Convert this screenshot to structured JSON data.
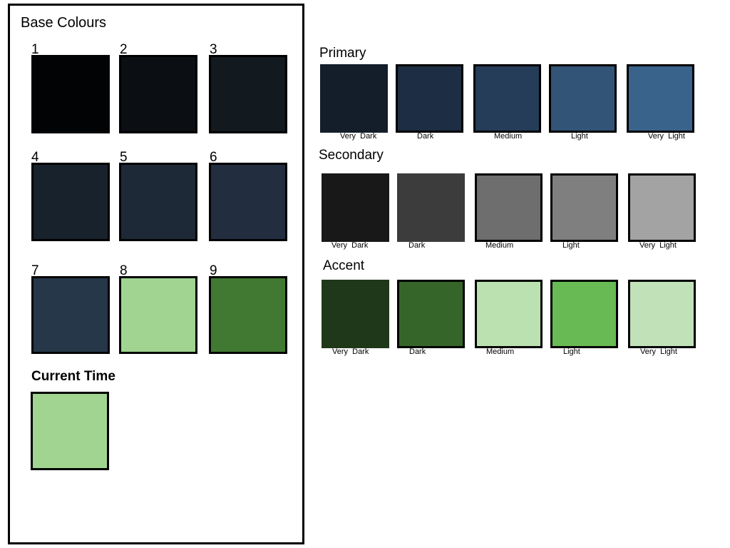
{
  "base_panel": {
    "title": "Base  Colours",
    "swatches": [
      {
        "label": "1",
        "color": "#020304"
      },
      {
        "label": "2",
        "color": "#0b0e12"
      },
      {
        "label": "3",
        "color": "#12191f"
      },
      {
        "label": "4",
        "color": "#18222c"
      },
      {
        "label": "5",
        "color": "#1e2938"
      },
      {
        "label": "6",
        "color": "#222e3f"
      },
      {
        "label": "7",
        "color": "#263749"
      },
      {
        "label": "8",
        "color": "#a0d490"
      },
      {
        "label": "9",
        "color": "#417932"
      }
    ],
    "current_time": {
      "label": "Current Time",
      "color": "#a0d490"
    }
  },
  "palettes": [
    {
      "title": "Primary",
      "swatches": [
        {
          "label": "Very  Dark",
          "color": "#141e2a"
        },
        {
          "label": "Dark",
          "color": "#1d2d43"
        },
        {
          "label": "Medium",
          "color": "#253d59"
        },
        {
          "label": "Light",
          "color": "#325577"
        },
        {
          "label": "Very  Light",
          "color": "#3a638b"
        }
      ]
    },
    {
      "title": "Secondary",
      "swatches": [
        {
          "label": "Very  Dark",
          "color": "#181818"
        },
        {
          "label": "Dark",
          "color": "#3c3c3c"
        },
        {
          "label": "Medium",
          "color": "#6e6e6e"
        },
        {
          "label": "Light",
          "color": "#7f7f7f"
        },
        {
          "label": "Very  Light",
          "color": "#a3a3a3"
        }
      ]
    },
    {
      "title": "Accent",
      "swatches": [
        {
          "label": "Very  Dark",
          "color": "#20381a"
        },
        {
          "label": "Dark",
          "color": "#36652a"
        },
        {
          "label": "Medium",
          "color": "#bbe1b0"
        },
        {
          "label": "Light",
          "color": "#68bb54"
        },
        {
          "label": "Very  Light",
          "color": "#c1e2b8"
        }
      ]
    }
  ]
}
